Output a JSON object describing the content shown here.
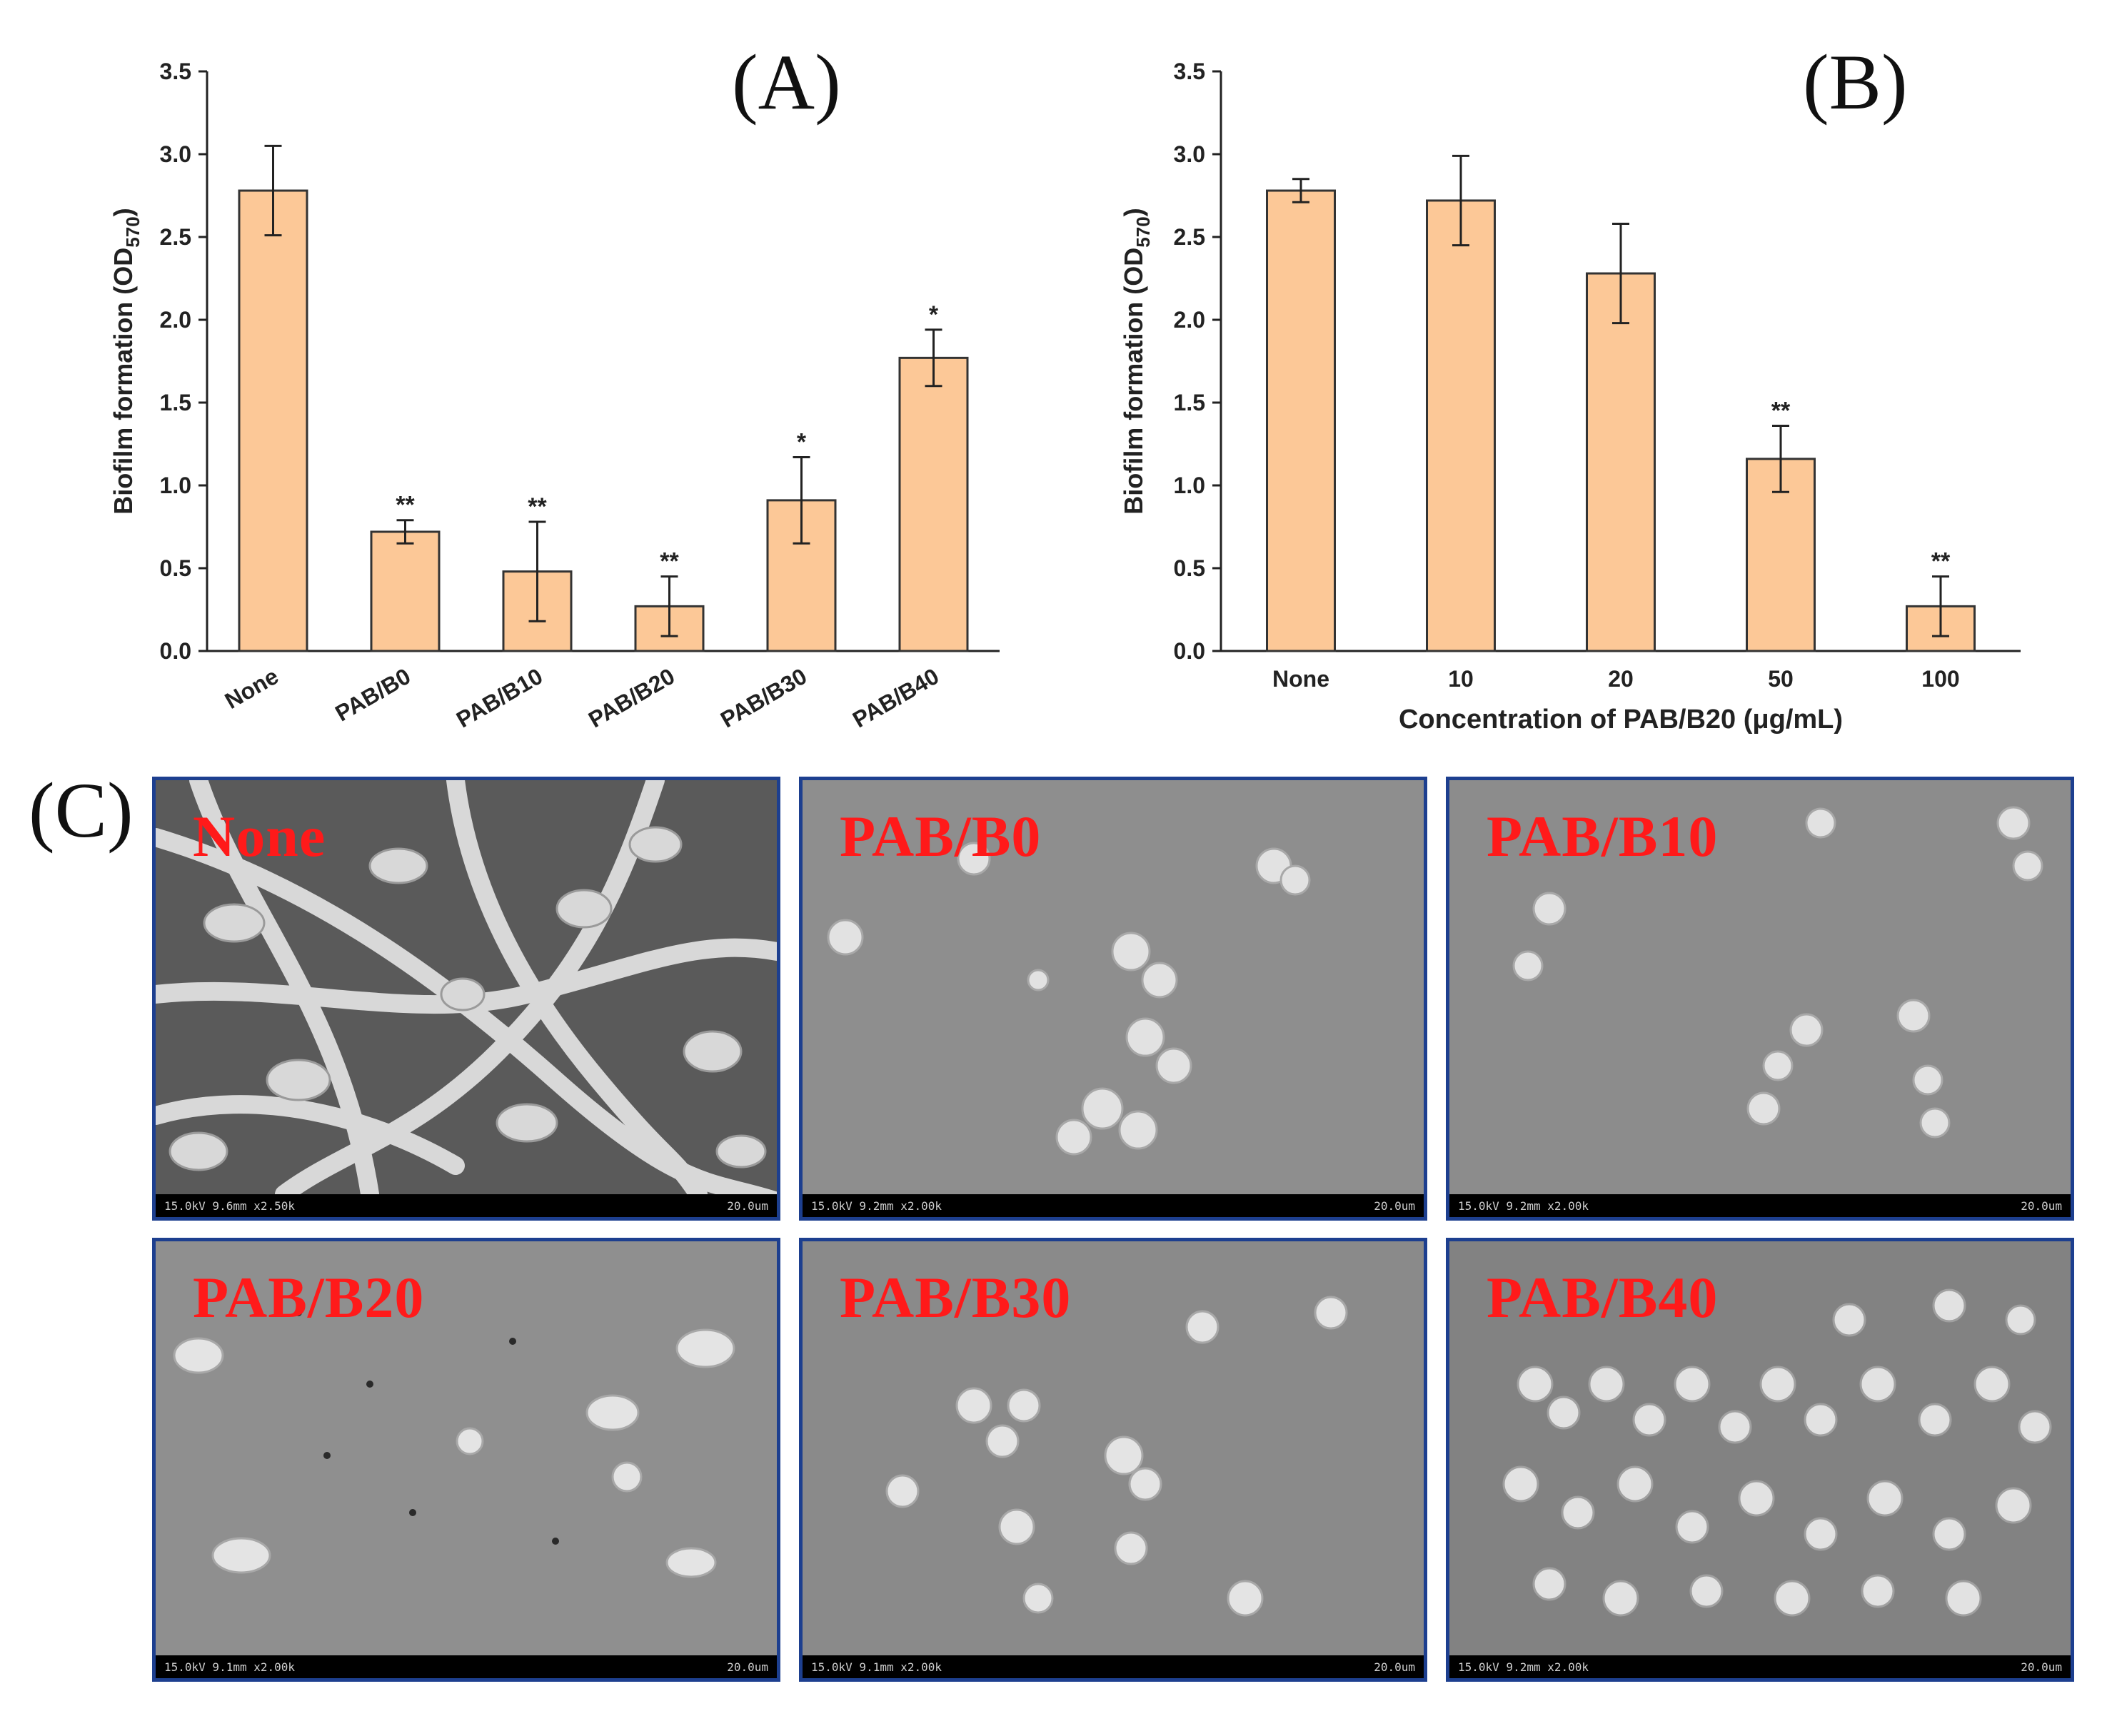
{
  "figure": {
    "panel_a_letter": "(A)",
    "panel_b_letter": "(B)",
    "panel_c_letter": "(C)"
  },
  "chart_data": [
    {
      "type": "bar",
      "panel": "A",
      "ylabel": "Biofilm formation (OD",
      "ylabel_sub": "570",
      "ylabel_close": ")",
      "xlabel": "",
      "ylim": [
        0,
        3.5
      ],
      "yticks": [
        "0.0",
        "0.5",
        "1.0",
        "1.5",
        "2.0",
        "2.5",
        "3.0",
        "3.5"
      ],
      "categories": [
        "None",
        "PAB/B0",
        "PAB/B10",
        "PAB/B20",
        "PAB/B30",
        "PAB/B40"
      ],
      "values": [
        2.78,
        0.72,
        0.48,
        0.27,
        0.91,
        1.77
      ],
      "errors": [
        0.27,
        0.07,
        0.3,
        0.18,
        0.26,
        0.17
      ],
      "significance": [
        "",
        "**",
        "**",
        "**",
        "*",
        "*"
      ],
      "bar_color": "#fcc897",
      "bar_edge": "#333333",
      "x_label_rotation": -30
    },
    {
      "type": "bar",
      "panel": "B",
      "ylabel": "Biofilm formation (OD",
      "ylabel_sub": "570",
      "ylabel_close": ")",
      "xlabel": "Concentration of PAB/B20 (μg/mL)",
      "ylim": [
        0,
        3.5
      ],
      "yticks": [
        "0.0",
        "0.5",
        "1.0",
        "1.5",
        "2.0",
        "2.5",
        "3.0",
        "3.5"
      ],
      "categories": [
        "None",
        "10",
        "20",
        "50",
        "100"
      ],
      "values": [
        2.78,
        2.72,
        2.28,
        1.16,
        0.27
      ],
      "errors": [
        0.07,
        0.27,
        0.3,
        0.2,
        0.18
      ],
      "significance": [
        "",
        "",
        "",
        "**",
        "**"
      ],
      "bar_color": "#fcc897",
      "bar_edge": "#333333",
      "x_label_rotation": 0
    }
  ],
  "sem_panels": [
    {
      "label": "None",
      "footer_left": "15.0kV 9.6mm x2.50k",
      "footer_right": "20.0um"
    },
    {
      "label": "PAB/B0",
      "footer_left": "15.0kV 9.2mm x2.00k",
      "footer_right": "20.0um"
    },
    {
      "label": "PAB/B10",
      "footer_left": "15.0kV 9.2mm x2.00k",
      "footer_right": "20.0um"
    },
    {
      "label": "PAB/B20",
      "footer_left": "15.0kV 9.1mm x2.00k",
      "footer_right": "20.0um"
    },
    {
      "label": "PAB/B30",
      "footer_left": "15.0kV 9.1mm x2.00k",
      "footer_right": "20.0um"
    },
    {
      "label": "PAB/B40",
      "footer_left": "15.0kV 9.2mm x2.00k",
      "footer_right": "20.0um"
    }
  ]
}
